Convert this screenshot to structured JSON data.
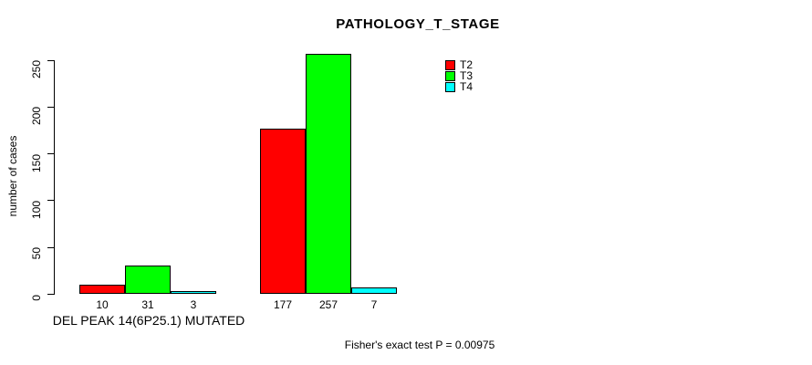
{
  "title": "PATHOLOGY_T_STAGE",
  "y_axis": {
    "label": "number of cases",
    "ticks": [
      0,
      50,
      100,
      150,
      200,
      250
    ]
  },
  "x_axis": {
    "group1_label": "DEL PEAK 14(6P25.1) MUTATED",
    "group2_label": ""
  },
  "legend": {
    "items": [
      {
        "label": "T2",
        "color": "#FF0000"
      },
      {
        "label": "T3",
        "color": "#00FF00"
      },
      {
        "label": "T4",
        "color": "#00FFFF"
      }
    ]
  },
  "footer_note": "Fisher's exact test P = 0.00975",
  "chart_data": {
    "type": "bar",
    "title": "PATHOLOGY_T_STAGE",
    "xlabel": "",
    "ylabel": "number of cases",
    "ylim": [
      0,
      250
    ],
    "yticks": [
      0,
      50,
      100,
      150,
      200,
      250
    ],
    "grid": false,
    "legend_position": "top-right",
    "categories": [
      "DEL PEAK 14(6P25.1) MUTATED",
      ""
    ],
    "series": [
      {
        "name": "T2",
        "color": "#FF0000",
        "values": [
          10,
          177
        ]
      },
      {
        "name": "T3",
        "color": "#00FF00",
        "values": [
          31,
          257
        ]
      },
      {
        "name": "T4",
        "color": "#00FFFF",
        "values": [
          3,
          7
        ]
      }
    ],
    "bar_value_labels": [
      [
        10,
        31,
        3
      ],
      [
        177,
        257,
        7
      ]
    ],
    "annotation": "Fisher's exact test P = 0.00975"
  }
}
